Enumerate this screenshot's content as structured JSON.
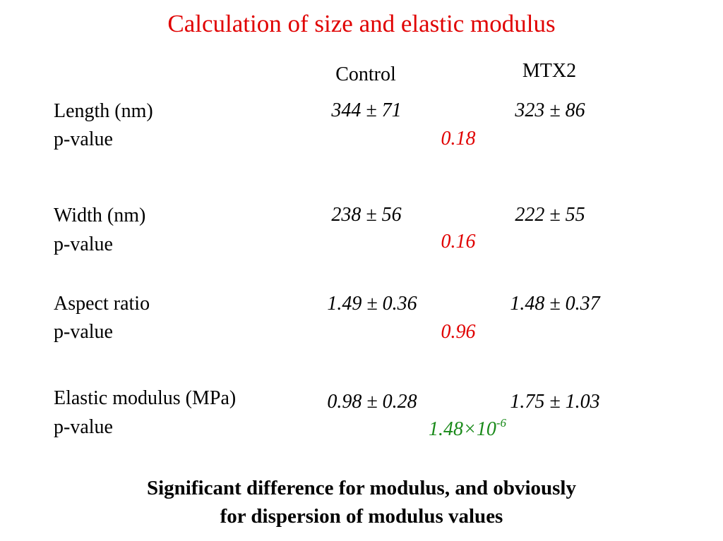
{
  "title": "Calculation of size and elastic modulus",
  "columns": {
    "control": "Control",
    "mtx2": "MTX2"
  },
  "rows": [
    {
      "label": "Length (nm)",
      "p_label": "p-value",
      "control": "344 ± 71",
      "mtx2": "323 ± 86",
      "p_value": "0.18"
    },
    {
      "label": "Width (nm)",
      "p_label": "p-value",
      "control": "238 ± 56",
      "mtx2": "222 ± 55",
      "p_value": "0.16"
    },
    {
      "label": "Aspect ratio",
      "p_label": "p-value",
      "control": "1.49 ± 0.36",
      "mtx2": "1.48 ± 0.37",
      "p_value": "0.96"
    },
    {
      "label": "Elastic modulus (MPa)",
      "p_label": "p-value",
      "control": "0.98 ± 0.28",
      "mtx2": "1.75 ± 1.03",
      "p_value": "1.48×10",
      "p_exp": "-6"
    }
  ],
  "conclusion": {
    "line1": "Significant difference for modulus, and obviously",
    "line2": "for dispersion of modulus values"
  },
  "colors": {
    "title": "#e00000",
    "p_nonsig": "#e00000",
    "p_sig": "#1a8a1a"
  }
}
